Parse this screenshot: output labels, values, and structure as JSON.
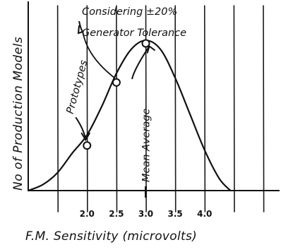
{
  "chart_data": {
    "type": "line",
    "title": "",
    "xlabel": "F.M. Sensitivity (microvolts)",
    "ylabel": "No of Production Models",
    "x_ticks": [
      "2.0",
      "2.5",
      "3.0",
      "3.5",
      "4.0"
    ],
    "xlim": [
      1.0,
      5.3
    ],
    "ylim": [
      0,
      1.25
    ],
    "grid": "vertical",
    "series": [
      {
        "x": [
          1.0,
          1.25,
          1.5,
          1.75,
          2.0,
          2.25,
          2.5,
          2.75,
          3.0,
          3.25,
          3.5,
          3.75,
          4.0,
          4.25,
          4.44
        ],
        "y": [
          0.0,
          0.04,
          0.12,
          0.25,
          0.37,
          0.56,
          0.78,
          0.94,
          1.0,
          0.94,
          0.75,
          0.51,
          0.27,
          0.08,
          0.0
        ]
      }
    ],
    "markers": [
      {
        "x": 2.0,
        "y": 0.3
      },
      {
        "x": 2.5,
        "y": 0.72
      },
      {
        "x": 3.0,
        "y": 0.98
      }
    ],
    "annotations": [
      {
        "text": "Prototypes",
        "x": 2.0,
        "y": 0.3
      },
      {
        "text": "Considering ±20%",
        "x": 2.5,
        "y": 0.72
      },
      {
        "text": "Generator Tolerance",
        "x": 2.5,
        "y": 0.72
      },
      {
        "text": "Mean Average",
        "x": 3.0,
        "y": 0.98
      }
    ]
  }
}
